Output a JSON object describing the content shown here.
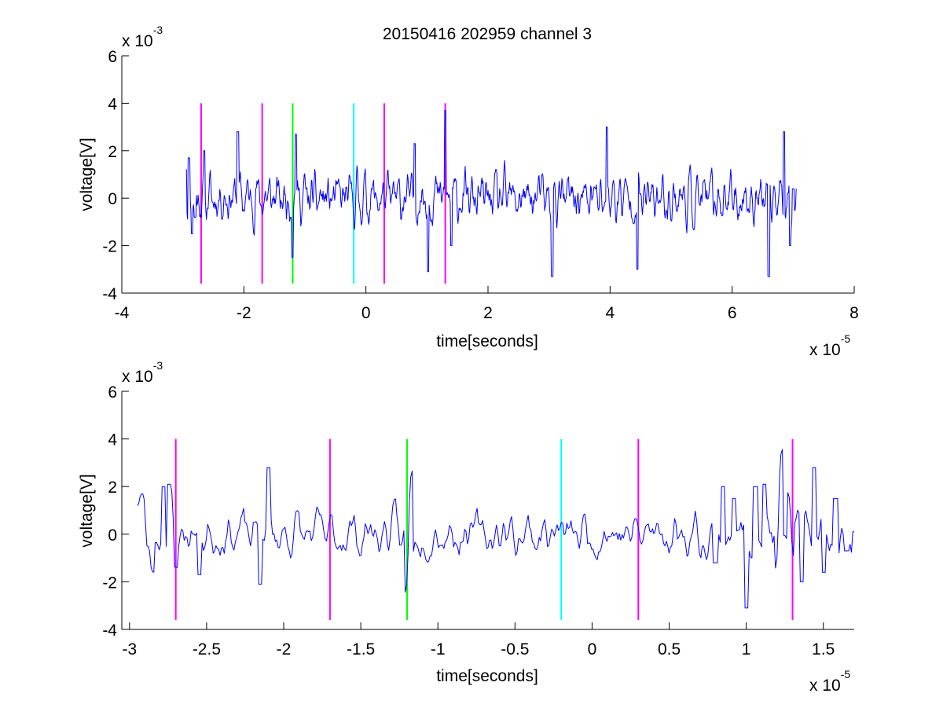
{
  "title": "20150416 202959 channel 3",
  "colors": {
    "signal": "#0000ff",
    "magenta": "#ff00ff",
    "green": "#00ff00",
    "cyan": "#00ffff",
    "axes": "#000000",
    "background": "#ffffff"
  },
  "chart_data": [
    {
      "type": "line",
      "title": "20150416 202959 channel 3",
      "xlabel": "time[seconds]",
      "ylabel": "voltage[V]",
      "x_exponent_label": "x 10",
      "x_exponent": "-5",
      "y_exponent_label": "x 10",
      "y_exponent": "-3",
      "xlim": [
        -4,
        8
      ],
      "ylim": [
        -4,
        6
      ],
      "xticks": [
        -4,
        -2,
        0,
        2,
        4,
        6,
        8
      ],
      "xtick_labels": [
        "-4",
        "-2",
        "0",
        "2",
        "4",
        "6",
        "8"
      ],
      "yticks": [
        -4,
        -2,
        0,
        2,
        4,
        6
      ],
      "ytick_labels": [
        "-4",
        "-2",
        "0",
        "2",
        "4",
        "6"
      ],
      "grid": false,
      "series": [
        {
          "color": "#0000ff",
          "x_range": [
            -2.95,
            7.05
          ],
          "points": 1100,
          "seed": 11,
          "anchors": [
            [
              -2.95,
              1.2
            ],
            [
              -2.9,
              1.7
            ],
            [
              -2.85,
              -1.5
            ],
            [
              -2.8,
              -0.8
            ],
            [
              -2.65,
              2.0
            ],
            [
              -2.1,
              2.8
            ],
            [
              -1.2,
              -2.5
            ],
            [
              -1.15,
              2.7
            ],
            [
              0.8,
              2.3
            ],
            [
              1.02,
              -3.1
            ],
            [
              1.3,
              3.7
            ],
            [
              1.4,
              -2.0
            ],
            [
              3.05,
              -3.3
            ],
            [
              3.95,
              3.0
            ],
            [
              4.45,
              -3.0
            ],
            [
              6.6,
              -3.3
            ],
            [
              6.85,
              2.8
            ],
            [
              6.95,
              -2.0
            ],
            [
              7.0,
              0.4
            ]
          ]
        }
      ],
      "markers": [
        {
          "x": -2.7,
          "y_range": [
            -3.6,
            4.0
          ],
          "color": "#ff00ff"
        },
        {
          "x": -1.7,
          "y_range": [
            -3.6,
            4.0
          ],
          "color": "#ff00ff"
        },
        {
          "x": -1.2,
          "y_range": [
            -3.6,
            4.0
          ],
          "color": "#00ff00"
        },
        {
          "x": -0.2,
          "y_range": [
            -3.6,
            4.0
          ],
          "color": "#00ffff"
        },
        {
          "x": 0.3,
          "y_range": [
            -3.6,
            4.0
          ],
          "color": "#ff00ff"
        },
        {
          "x": 1.3,
          "y_range": [
            -3.6,
            4.0
          ],
          "color": "#ff00ff"
        }
      ]
    },
    {
      "type": "line",
      "title": "",
      "xlabel": "time[seconds]",
      "ylabel": "voltage[V]",
      "x_exponent_label": "x 10",
      "x_exponent": "-5",
      "y_exponent_label": "x 10",
      "y_exponent": "-3",
      "xlim": [
        -3.05,
        1.7
      ],
      "ylim": [
        -4,
        6
      ],
      "xticks": [
        -3,
        -2.5,
        -2,
        -1.5,
        -1,
        -0.5,
        0,
        0.5,
        1,
        1.5
      ],
      "xtick_labels": [
        "-3",
        "-2.5",
        "-2",
        "-1.5",
        "-1",
        "-0.5",
        "0",
        "0.5",
        "1",
        "1.5"
      ],
      "yticks": [
        -4,
        -2,
        0,
        2,
        4,
        6
      ],
      "ytick_labels": [
        "-4",
        "-2",
        "0",
        "2",
        "4",
        "6"
      ],
      "grid": false,
      "series": [
        {
          "color": "#0000ff",
          "x_range": [
            -2.95,
            1.7
          ],
          "points": 520,
          "seed": 23,
          "anchors": [
            [
              -2.95,
              1.2
            ],
            [
              -2.92,
              1.7
            ],
            [
              -2.88,
              -0.5
            ],
            [
              -2.85,
              -1.6
            ],
            [
              -2.78,
              2.0
            ],
            [
              -2.74,
              2.1
            ],
            [
              -2.7,
              -1.4
            ],
            [
              -2.55,
              -1.7
            ],
            [
              -2.1,
              2.8
            ],
            [
              -2.15,
              -2.1
            ],
            [
              -1.2,
              -2.5
            ],
            [
              -1.18,
              2.7
            ],
            [
              0.8,
              -1.2
            ],
            [
              0.85,
              2.0
            ],
            [
              0.92,
              1.5
            ],
            [
              1.0,
              -3.1
            ],
            [
              1.06,
              2.0
            ],
            [
              1.12,
              2.1
            ],
            [
              1.2,
              -1.5
            ],
            [
              1.22,
              3.6
            ],
            [
              1.28,
              1.8
            ],
            [
              1.3,
              -1.0
            ],
            [
              1.36,
              -2.0
            ],
            [
              1.44,
              2.8
            ],
            [
              1.5,
              -1.6
            ],
            [
              1.58,
              1.5
            ],
            [
              1.65,
              -0.7
            ],
            [
              1.7,
              0.1
            ]
          ]
        }
      ],
      "markers": [
        {
          "x": -2.7,
          "y_range": [
            -3.6,
            4.0
          ],
          "color": "#ff00ff"
        },
        {
          "x": -1.7,
          "y_range": [
            -3.6,
            4.0
          ],
          "color": "#ff00ff"
        },
        {
          "x": -1.2,
          "y_range": [
            -3.6,
            4.0
          ],
          "color": "#00ff00"
        },
        {
          "x": -0.2,
          "y_range": [
            -3.6,
            4.0
          ],
          "color": "#00ffff"
        },
        {
          "x": 0.3,
          "y_range": [
            -3.6,
            4.0
          ],
          "color": "#ff00ff"
        },
        {
          "x": 1.3,
          "y_range": [
            -3.6,
            4.0
          ],
          "color": "#ff00ff"
        }
      ]
    }
  ]
}
